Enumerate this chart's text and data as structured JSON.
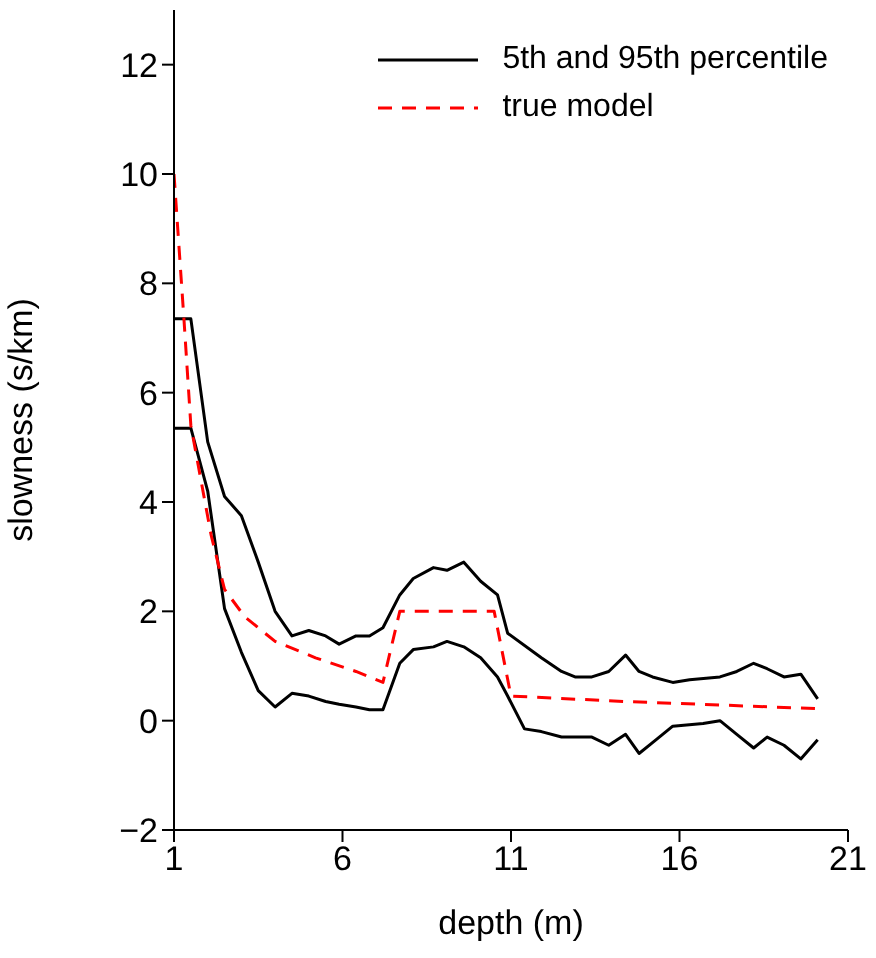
{
  "chart_data": {
    "type": "line",
    "xlabel": "depth (m)",
    "ylabel": "slowness (s/km)",
    "xlim": [
      1,
      21
    ],
    "xticks": [
      1,
      6,
      11,
      16,
      21
    ],
    "ylim": [
      -2,
      13
    ],
    "yticks": [
      -2,
      0,
      2,
      4,
      6,
      8,
      10,
      12
    ],
    "grid": false,
    "legend": "top right",
    "marker": "none",
    "series": [
      {
        "name": "5th and 95th percentile",
        "color": "#000000",
        "line_style": "solid",
        "x": [
          1,
          1.5,
          2,
          2.5,
          3,
          3.5,
          4,
          4.5,
          5,
          5.5,
          5.9,
          6.4,
          6.8,
          7.2,
          7.7,
          8.1,
          8.7,
          9.1,
          9.6,
          10.1,
          10.6,
          10.9,
          11.9,
          12.5,
          12.9,
          13.4,
          13.9,
          14.4,
          14.8,
          15.2,
          15.8,
          16.3,
          17.2,
          17.7,
          18.2,
          18.6,
          19.1,
          19.6,
          20.1
        ],
        "values": [
          7.35,
          7.35,
          5.1,
          4.1,
          3.75,
          2.9,
          2.0,
          1.55,
          1.65,
          1.55,
          1.4,
          1.55,
          1.55,
          1.7,
          2.3,
          2.6,
          2.8,
          2.75,
          2.9,
          2.55,
          2.3,
          1.6,
          1.15,
          0.9,
          0.8,
          0.8,
          0.9,
          1.2,
          0.9,
          0.8,
          0.7,
          0.75,
          0.8,
          0.9,
          1.05,
          0.95,
          0.8,
          0.85,
          0.4
        ]
      },
      {
        "color": "#000000",
        "line_style": "solid",
        "x": [
          1,
          1.5,
          2,
          2.5,
          3,
          3.5,
          4,
          4.5,
          5,
          5.5,
          5.9,
          6.4,
          6.8,
          7.2,
          7.7,
          8.1,
          8.7,
          9.1,
          9.6,
          10.1,
          10.6,
          10.9,
          11.4,
          11.9,
          12.5,
          13.4,
          13.9,
          14.4,
          14.8,
          15.3,
          15.8,
          16.7,
          17.2,
          17.7,
          18.2,
          18.6,
          19.1,
          19.6,
          20.1
        ],
        "values": [
          5.35,
          5.35,
          4.2,
          2.05,
          1.25,
          0.55,
          0.25,
          0.5,
          0.45,
          0.35,
          0.3,
          0.25,
          0.2,
          0.2,
          1.05,
          1.3,
          1.35,
          1.45,
          1.35,
          1.15,
          0.8,
          0.45,
          -0.15,
          -0.2,
          -0.3,
          -0.3,
          -0.45,
          -0.25,
          -0.6,
          -0.35,
          -0.1,
          -0.05,
          0.0,
          -0.25,
          -0.5,
          -0.3,
          -0.45,
          -0.7,
          -0.35
        ]
      },
      {
        "name": "true model",
        "color": "#ff0000",
        "line_style": "dashed",
        "x": [
          1,
          1.3,
          1.5,
          2.1,
          2.5,
          3.1,
          4.0,
          5.2,
          6.4,
          7.2,
          7.7,
          10.5,
          11.0,
          14.4,
          20.1
        ],
        "values": [
          10,
          7.3,
          5.4,
          3.4,
          2.4,
          1.9,
          1.45,
          1.15,
          0.9,
          0.7,
          2.0,
          2.0,
          0.45,
          0.35,
          0.22
        ]
      }
    ]
  }
}
